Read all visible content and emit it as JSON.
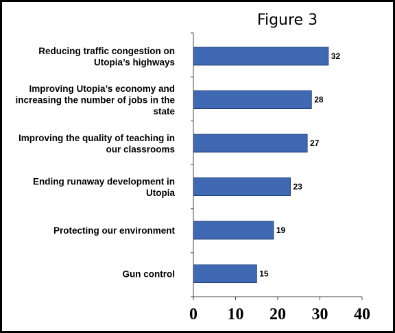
{
  "chart_data": {
    "type": "bar",
    "orientation": "horizontal",
    "title": "Figure 3",
    "categories": [
      "Reducing traffic congestion on Utopia’s highways",
      "Improving Utopia’s economy and increasing the number of jobs in the state",
      "Improving the quality of teaching in our classrooms",
      "Ending runaway development in Utopia",
      "Protecting our environment",
      "Gun control"
    ],
    "values": [
      32,
      28,
      27,
      23,
      19,
      15
    ],
    "xlim": [
      0,
      40
    ],
    "xticks": [
      "0",
      "10",
      "20",
      "30",
      "40"
    ],
    "bar_color": "#3F69B3",
    "grid": false,
    "legend": "none"
  }
}
